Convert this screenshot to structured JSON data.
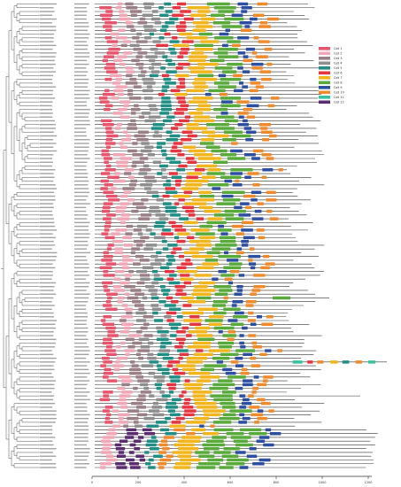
{
  "legend": {
    "items": [
      {
        "label": "Cell 1",
        "color": "#e8546b"
      },
      {
        "label": "Cell 2",
        "color": "#f2a7b6"
      },
      {
        "label": "Cell 3",
        "color": "#9a7f86"
      },
      {
        "label": "Cell 4",
        "color": "#8e8e8e"
      },
      {
        "label": "Cell 5",
        "color": "#1f8f86"
      },
      {
        "label": "Cell 6",
        "color": "#e8343e"
      },
      {
        "label": "Cell 7",
        "color": "#f3b51c"
      },
      {
        "label": "Cell 8",
        "color": "#58ab3a"
      },
      {
        "label": "Cell 9",
        "color": "#2c4fa1"
      },
      {
        "label": "Cell 10",
        "color": "#f08a2a"
      },
      {
        "label": "Cell 11",
        "color": "#35c2a0"
      },
      {
        "label": "Cell 12",
        "color": "#5b2c6f"
      }
    ]
  },
  "axis": {
    "ticks": [
      "0",
      "200",
      "400",
      "600",
      "800",
      "1000",
      "1200"
    ]
  },
  "colors": {
    "tree": "#404040",
    "backbone": "#333333",
    "labels": "#555555"
  }
}
